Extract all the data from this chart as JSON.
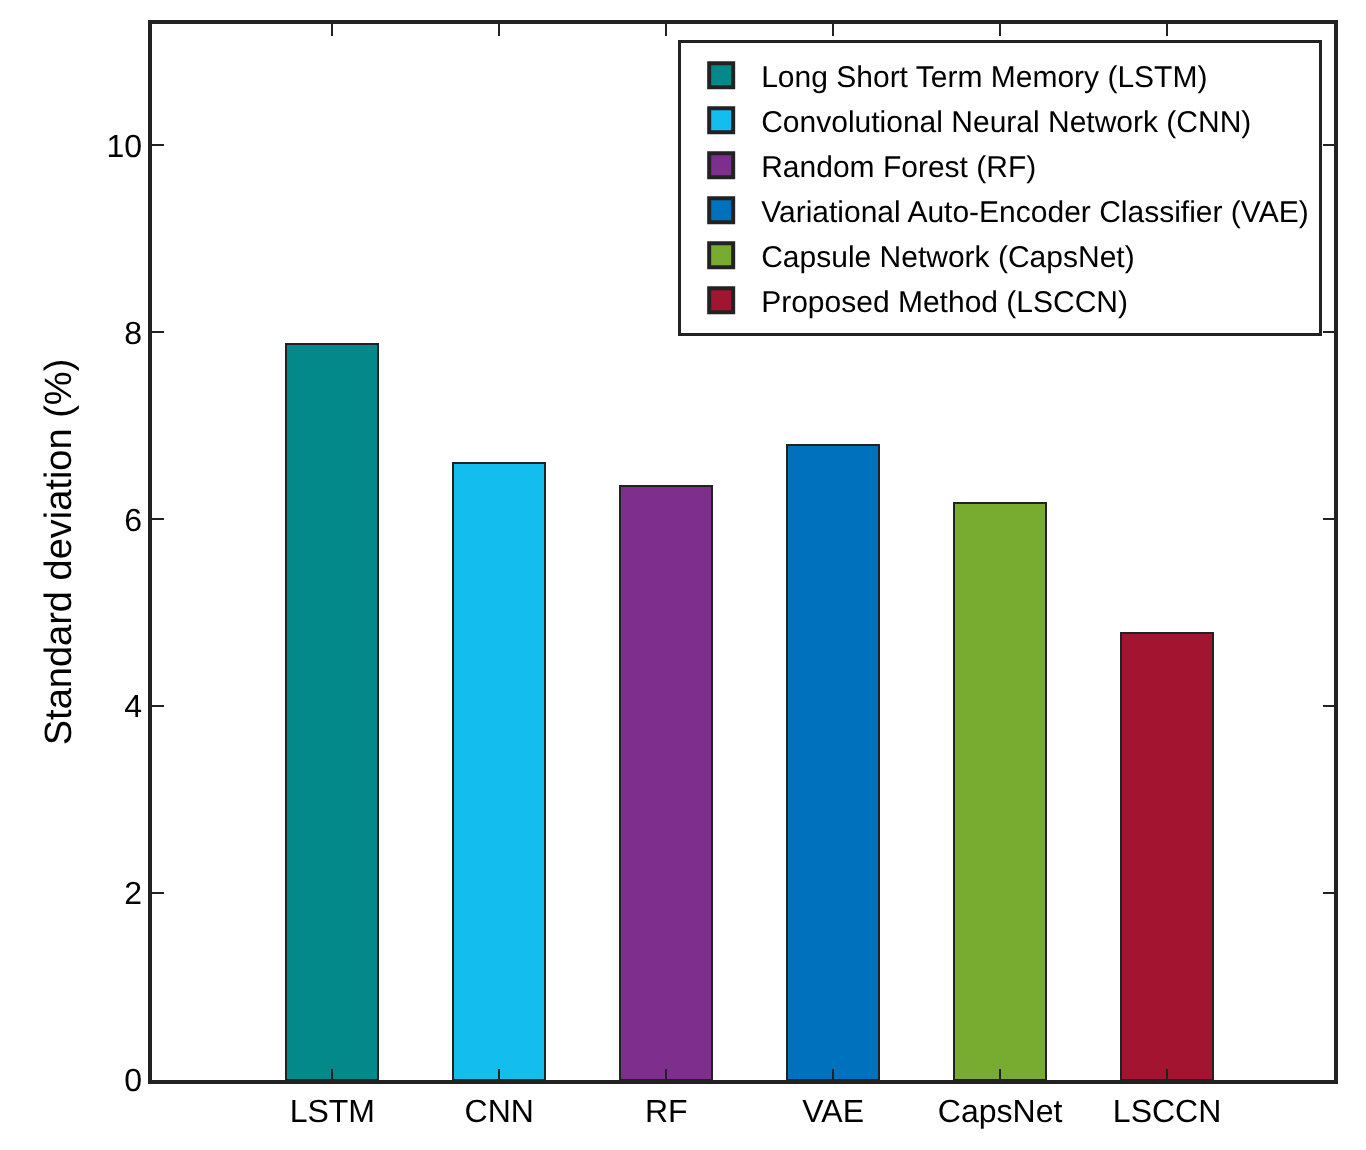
{
  "chart_data": {
    "type": "bar",
    "ylabel": "Standard deviation (%)",
    "categories": [
      "LSTM",
      "CNN",
      "RF",
      "VAE",
      "CapsNet",
      "LSCCN"
    ],
    "series": [
      {
        "name": "Long Short Term Memory (LSTM)",
        "color": "#03898a",
        "values": [
          7.88,
          null,
          null,
          null,
          null,
          null
        ]
      },
      {
        "name": "Convolutional Neural Network (CNN)",
        "color": "#13beee",
        "values": [
          null,
          6.6,
          null,
          null,
          null,
          null
        ]
      },
      {
        "name": "Random Forest (RF)",
        "color": "#7e2f8e",
        "values": [
          null,
          null,
          6.36,
          null,
          null,
          null
        ]
      },
      {
        "name": "Variational Auto-Encoder Classifier (VAE)",
        "color": "#0072bd",
        "values": [
          null,
          null,
          null,
          6.79,
          null,
          null
        ]
      },
      {
        "name": "Capsule Network (CapsNet)",
        "color": "#77ac30",
        "values": [
          null,
          null,
          null,
          null,
          6.17,
          null
        ]
      },
      {
        "name": "Proposed Method (LSCCN)",
        "color": "#a2142f",
        "values": [
          null,
          null,
          null,
          null,
          null,
          4.78
        ]
      }
    ],
    "stacked": true,
    "ylim": [
      0,
      11.3
    ],
    "yticks": [
      0,
      2,
      4,
      6,
      8,
      10
    ],
    "legend": "top right"
  }
}
